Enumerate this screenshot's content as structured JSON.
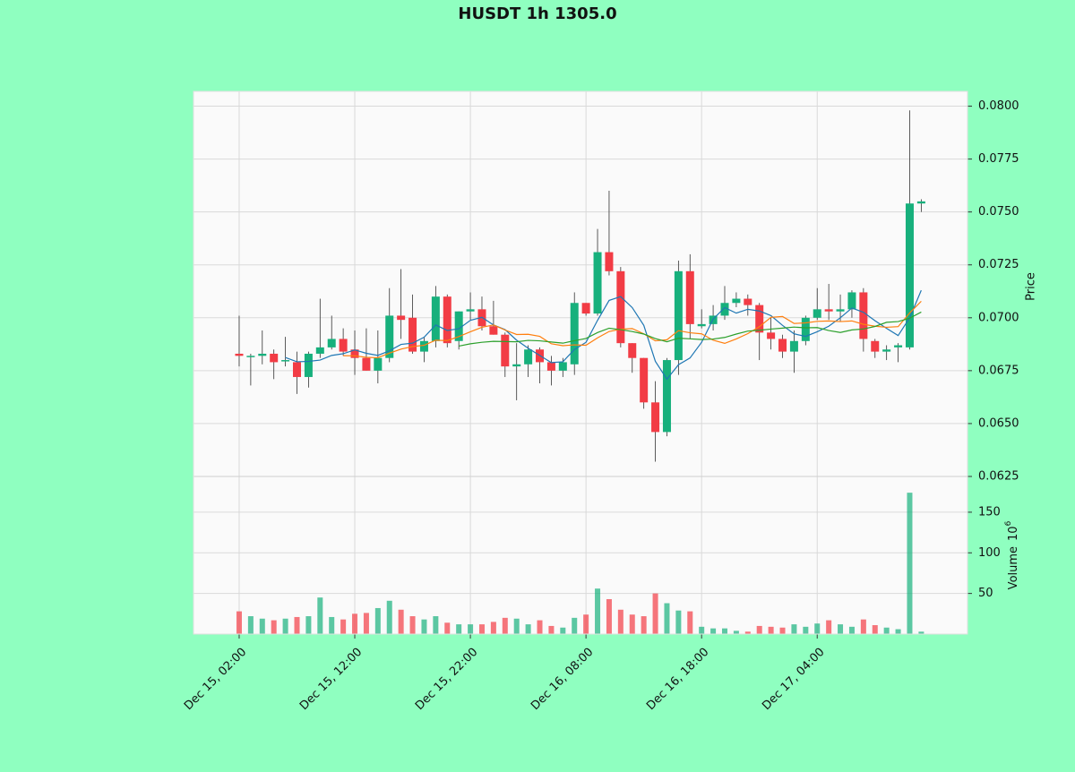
{
  "chart_data": {
    "type": "candlestick",
    "title": "HUSDT 1h 1305.0",
    "ylabel": "Price",
    "up_color": "#17b07c",
    "down_color": "#f23c45",
    "open": [
      0.0683,
      0.0682,
      0.0682,
      0.0683,
      0.068,
      0.0679,
      0.0672,
      0.0683,
      0.0686,
      0.069,
      0.0685,
      0.0681,
      0.0675,
      0.0681,
      0.0701,
      0.07,
      0.0684,
      0.0689,
      0.071,
      0.0689,
      0.0703,
      0.0704,
      0.0696,
      0.0692,
      0.0677,
      0.0678,
      0.0685,
      0.0679,
      0.0675,
      0.0678,
      0.0707,
      0.0702,
      0.0731,
      0.0722,
      0.0688,
      0.0681,
      0.066,
      0.0646,
      0.068,
      0.0722,
      0.0696,
      0.0697,
      0.0701,
      0.0707,
      0.0709,
      0.0706,
      0.0693,
      0.069,
      0.0684,
      0.0689,
      0.07,
      0.0704,
      0.0703,
      0.0704,
      0.0712,
      0.0689,
      0.0684,
      0.0686,
      0.0686,
      0.0754
    ],
    "high": [
      0.0701,
      0.0683,
      0.0694,
      0.0685,
      0.0691,
      0.0684,
      0.0684,
      0.0709,
      0.0701,
      0.0695,
      0.0694,
      0.0695,
      0.0694,
      0.0714,
      0.0723,
      0.0711,
      0.0691,
      0.0715,
      0.0711,
      0.0703,
      0.0712,
      0.071,
      0.0708,
      0.0693,
      0.0688,
      0.0687,
      0.0686,
      0.0682,
      0.0681,
      0.0712,
      0.0707,
      0.0742,
      0.076,
      0.0724,
      0.0688,
      0.0681,
      0.067,
      0.0681,
      0.0727,
      0.073,
      0.0704,
      0.0706,
      0.0715,
      0.0712,
      0.0711,
      0.0707,
      0.07,
      0.0692,
      0.0694,
      0.0701,
      0.0714,
      0.0716,
      0.0711,
      0.0713,
      0.0714,
      0.069,
      0.0687,
      0.0688,
      0.0798,
      0.0756
    ],
    "low": [
      0.0677,
      0.0668,
      0.0678,
      0.0671,
      0.0677,
      0.0664,
      0.0667,
      0.0681,
      0.0685,
      0.0682,
      0.0673,
      0.0675,
      0.0669,
      0.0679,
      0.069,
      0.0683,
      0.0679,
      0.0686,
      0.0686,
      0.0685,
      0.0699,
      0.0694,
      0.0692,
      0.0672,
      0.0661,
      0.0672,
      0.0669,
      0.0668,
      0.0672,
      0.0673,
      0.0701,
      0.0701,
      0.072,
      0.0686,
      0.0674,
      0.0657,
      0.0632,
      0.0644,
      0.0673,
      0.069,
      0.0695,
      0.0694,
      0.0699,
      0.0705,
      0.0701,
      0.068,
      0.0685,
      0.0681,
      0.0674,
      0.0687,
      0.0699,
      0.0699,
      0.0698,
      0.07,
      0.0684,
      0.0681,
      0.068,
      0.0679,
      0.0685,
      0.075
    ],
    "close": [
      0.0682,
      0.0682,
      0.0683,
      0.0679,
      0.068,
      0.0672,
      0.0683,
      0.0686,
      0.069,
      0.0684,
      0.0681,
      0.0675,
      0.0681,
      0.0701,
      0.0699,
      0.0684,
      0.0689,
      0.071,
      0.0688,
      0.0703,
      0.0704,
      0.0696,
      0.0692,
      0.0677,
      0.0678,
      0.0685,
      0.0679,
      0.0675,
      0.0679,
      0.0707,
      0.0702,
      0.0731,
      0.0722,
      0.0688,
      0.0681,
      0.066,
      0.0646,
      0.068,
      0.0722,
      0.0697,
      0.0697,
      0.0701,
      0.0707,
      0.0709,
      0.0706,
      0.0693,
      0.069,
      0.0684,
      0.0689,
      0.07,
      0.0704,
      0.0703,
      0.0704,
      0.0712,
      0.069,
      0.0684,
      0.0685,
      0.0687,
      0.0754,
      0.0755
    ],
    "moving_averages": [
      {
        "color": "#1f77b4",
        "values": [
          null,
          null,
          null,
          null,
          0.06812,
          0.06792,
          0.06794,
          0.068,
          0.06822,
          0.0683,
          0.06848,
          0.06832,
          0.06822,
          0.06844,
          0.06874,
          0.0688,
          0.06908,
          0.06966,
          0.0694,
          0.06948,
          0.06988,
          0.07002,
          0.06966,
          0.06944,
          0.06894,
          0.06856,
          0.06822,
          0.06788,
          0.06792,
          0.0685,
          0.06884,
          0.06988,
          0.07082,
          0.071,
          0.07048,
          0.06964,
          0.06794,
          0.0671,
          0.06778,
          0.0681,
          0.06884,
          0.06994,
          0.07048,
          0.07022,
          0.0704,
          0.07032,
          0.0701,
          0.06964,
          0.06924,
          0.06912,
          0.06934,
          0.0696,
          0.07,
          0.07046,
          0.07026,
          0.06986,
          0.0695,
          0.06916,
          0.07,
          0.0713
        ]
      },
      {
        "color": "#ff7f0e",
        "values": [
          null,
          null,
          null,
          null,
          null,
          null,
          null,
          null,
          null,
          0.06821,
          0.0682,
          0.06813,
          0.06811,
          0.06833,
          0.06852,
          0.06864,
          0.0687,
          0.06894,
          0.06892,
          0.06911,
          0.06934,
          0.06955,
          0.06966,
          0.06942,
          0.06921,
          0.06922,
          0.06912,
          0.06877,
          0.06868,
          0.06872,
          0.0687,
          0.06905,
          0.06935,
          0.06946,
          0.06949,
          0.06924,
          0.06891,
          0.06896,
          0.06939,
          0.06929,
          0.06924,
          0.06894,
          0.06879,
          0.069,
          0.06925,
          0.06958,
          0.07002,
          0.07006,
          0.06973,
          0.06976,
          0.06983,
          0.06985,
          0.06982,
          0.06985,
          0.06969,
          0.0696,
          0.06955,
          0.06958,
          0.07023,
          0.07078
        ]
      },
      {
        "color": "#2ca02c",
        "values": [
          null,
          null,
          null,
          null,
          null,
          null,
          null,
          null,
          null,
          null,
          null,
          null,
          null,
          null,
          null,
          null,
          null,
          null,
          null,
          0.06866,
          0.06877,
          0.06884,
          0.068885,
          0.068875,
          0.068865,
          0.06893,
          0.06891,
          0.068855,
          0.0688,
          0.068915,
          0.06902,
          0.0693,
          0.069505,
          0.06944,
          0.06935,
          0.06923,
          0.069015,
          0.068865,
          0.069035,
          0.069005,
          0.06897,
          0.068995,
          0.06907,
          0.06923,
          0.06937,
          0.06941,
          0.069465,
          0.06951,
          0.06956,
          0.069525,
          0.069535,
          0.069395,
          0.069305,
          0.069425,
          0.06947,
          0.06959,
          0.069785,
          0.06982,
          0.06998,
          0.07027
        ]
      }
    ],
    "ylim": [
      0.0625,
      0.0807
    ],
    "yticks": [
      0.0625,
      {
        "value": 0.065,
        "label": "0.0650"
      },
      0.0675,
      {
        "value": 0.07,
        "label": "0.0700"
      },
      0.0725,
      {
        "value": 0.075,
        "label": "0.0750"
      },
      0.0775,
      {
        "value": 0.08,
        "label": "0.0800"
      }
    ],
    "xlim": [
      -3.95,
      63
    ],
    "xticks": [
      {
        "value": 0,
        "label": "Dec 15, 02:00"
      },
      {
        "value": 10,
        "label": "Dec 15, 12:00"
      },
      {
        "value": 20,
        "label": "Dec 15, 22:00"
      },
      {
        "value": 30,
        "label": "Dec 16, 08:00"
      },
      {
        "value": 40,
        "label": "Dec 16, 18:00"
      },
      {
        "value": 50,
        "label": "Dec 17, 04:00"
      }
    ],
    "grid": true,
    "volume": {
      "ylabel": "Volume",
      "exponent_base": "10",
      "exponent": "6",
      "values": [
        28,
        22,
        19,
        17,
        19,
        21,
        22,
        45,
        21,
        18,
        25,
        26,
        32,
        41,
        30,
        22,
        18,
        22,
        14,
        12,
        12,
        12,
        15,
        20,
        19,
        12,
        17,
        10,
        8,
        20,
        24,
        56,
        43,
        30,
        24,
        22,
        50,
        38,
        29,
        28,
        9,
        7,
        7,
        4,
        3,
        10,
        9,
        8,
        12,
        9,
        13,
        17,
        12,
        9,
        18,
        11,
        8,
        6,
        174,
        3
      ],
      "ylim": [
        0,
        194
      ],
      "yticks": [
        50,
        100,
        150
      ]
    }
  }
}
